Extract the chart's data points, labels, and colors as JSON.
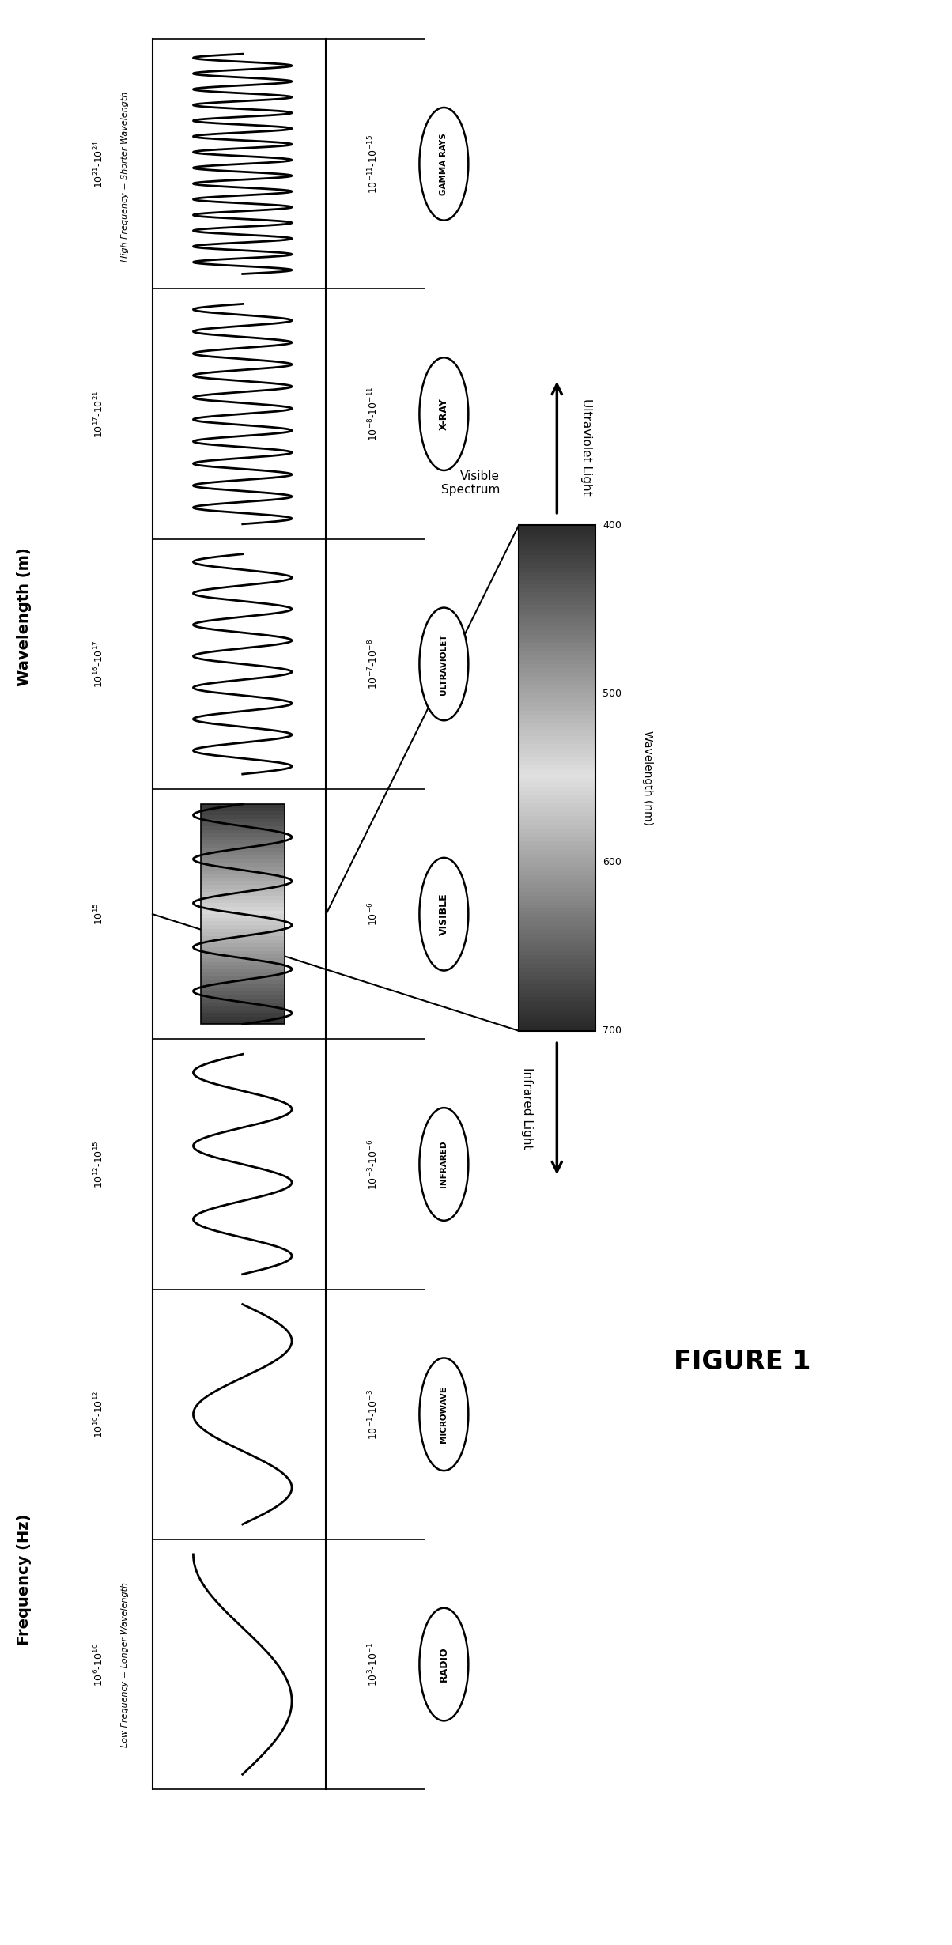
{
  "title": "FIGURE 1",
  "figure_size": [
    12.04,
    24.6
  ],
  "background_color": "#ffffff",
  "bands": [
    {
      "name": "RADIO",
      "wl": "$10^3$-$10^{-1}$",
      "freq": "$10^6$-$10^{10}$",
      "ncycles": 0.75
    },
    {
      "name": "MICROWAVE",
      "wl": "$10^{-1}$-$10^{-3}$",
      "freq": "$10^{10}$-$10^{12}$",
      "ncycles": 1.5
    },
    {
      "name": "INFRARED",
      "wl": "$10^{-3}$-$10^{-6}$",
      "freq": "$10^{12}$-$10^{15}$",
      "ncycles": 3.0
    },
    {
      "name": "VISIBLE",
      "wl": "$10^{-6}$",
      "freq": "$10^{15}$",
      "ncycles": 5.0
    },
    {
      "name": "ULTRAVIOLET",
      "wl": "$10^{-7}$-$10^{-8}$",
      "freq": "$10^{16}$-$10^{17}$",
      "ncycles": 7.0
    },
    {
      "name": "X-RAY",
      "wl": "$10^{-8}$-$10^{-11}$",
      "freq": "$10^{17}$-$10^{21}$",
      "ncycles": 10.0
    },
    {
      "name": "GAMMA RAYS",
      "wl": "$10^{-11}$-$10^{-15}$",
      "freq": "$10^{21}$-$10^{24}$",
      "ncycles": 14.0
    }
  ],
  "wavelength_label": "Wavelength (m)",
  "frequency_label": "Frequency (Hz)",
  "low_freq_note": "Low Frequency = Longer Wavelength",
  "high_freq_note": "High Frequency = Shorter Wavelength",
  "uv_label": "Ultraviolet Light",
  "ir_label": "Infrared Light",
  "visible_spectrum_label": "Visible\nSpectrum",
  "wavelength_nm_label": "Wavelength (nm)",
  "wl_nm_ticks": [
    700,
    600,
    500,
    400
  ]
}
